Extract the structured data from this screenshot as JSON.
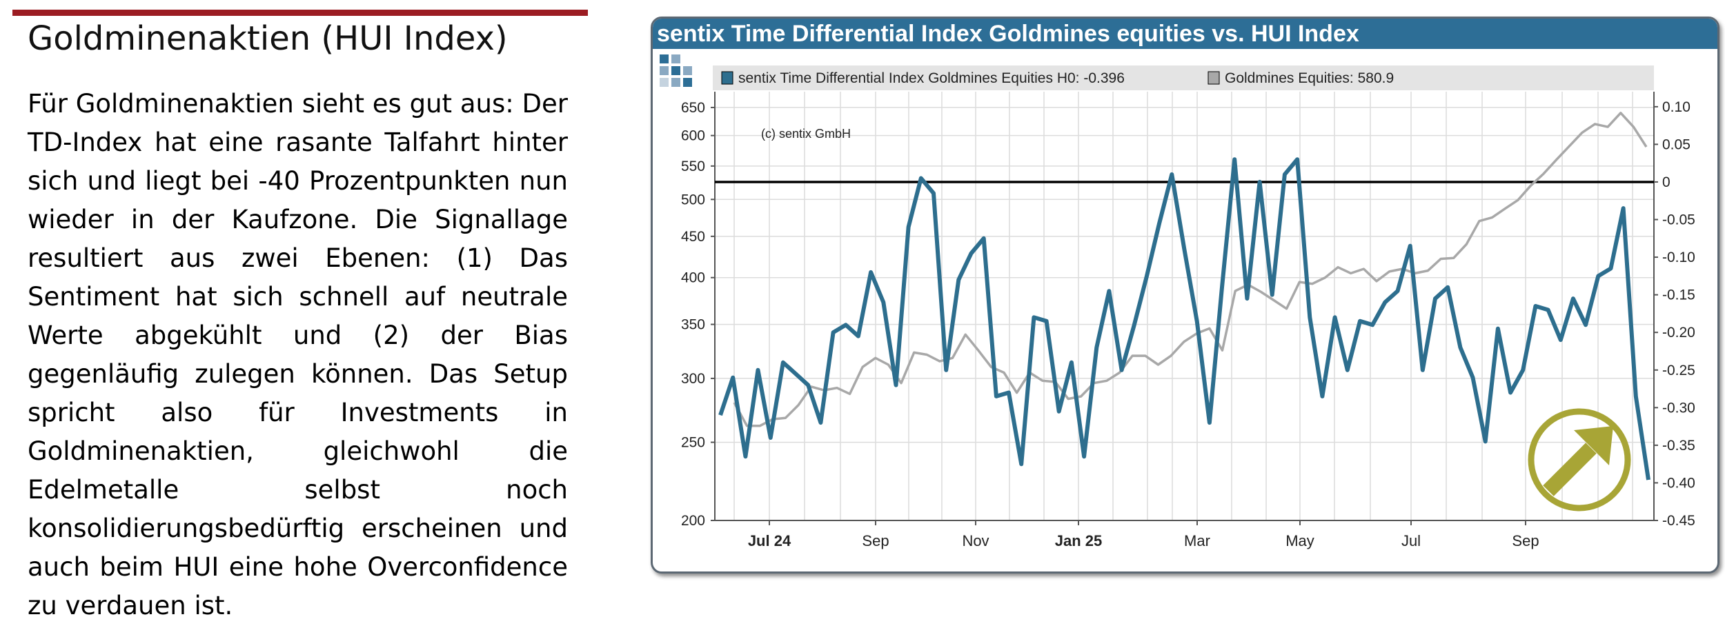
{
  "article": {
    "heading": "Goldminenaktien (HUI Index)",
    "lines": [
      "Für Goldminenaktien sieht es gut aus: Der",
      "TD-Index hat eine rasante Talfahrt hinter",
      "sich und liegt bei -40 Prozentpunkten nun",
      "wieder in der Kaufzone. Die Signallage",
      "resultiert aus zwei Ebenen: (1) Das",
      "Sentiment hat sich schnell auf neutrale",
      "Werte abgekühlt und (2) der Bias",
      "gegenläufig zulegen können. Das Setup",
      "spricht also für Investments in",
      "Goldminenaktien, gleichwohl die",
      "Edelmetalle selbst noch",
      "konsolidierungsbedürftig erscheinen und",
      "auch beim HUI eine hohe Overconfidence",
      "zu verdauen ist."
    ]
  },
  "chart_data": {
    "type": "line",
    "title": "sentix Time Differential Index Goldmines equities vs. HUI Index",
    "copyright": "(c) sentix GmbH",
    "legend": [
      {
        "label": "sentix Time Differential Index Goldmines Equities H0: -0.396",
        "color": "#2d6e8e"
      },
      {
        "label": "Goldmines Equities: 580.9",
        "color": "#a8a8a8"
      }
    ],
    "legend_position": "top",
    "x_ticks": [
      {
        "label": "Jul 24",
        "bold": true
      },
      {
        "label": "Sep",
        "bold": false
      },
      {
        "label": "Nov",
        "bold": false
      },
      {
        "label": "Jan 25",
        "bold": true
      },
      {
        "label": "Mar",
        "bold": false
      },
      {
        "label": "May",
        "bold": false
      },
      {
        "label": "Jul",
        "bold": false
      },
      {
        "label": "Sep",
        "bold": false
      }
    ],
    "left_axis": {
      "scale": "log",
      "ticks": [
        200,
        250,
        300,
        350,
        400,
        450,
        500,
        550,
        600,
        650
      ],
      "range": [
        200,
        680
      ]
    },
    "right_axis": {
      "scale": "linear",
      "ticks": [
        "0.10",
        "0.05",
        "0",
        "-0.05",
        "-0.10",
        "-0.15",
        "-0.20",
        "-0.25",
        "-0.30",
        "-0.35",
        "-0.40",
        "-0.45"
      ],
      "range": [
        -0.45,
        0.12
      ]
    },
    "grid": true,
    "zero_line": 0,
    "series": [
      {
        "name": "sentix Time Differential Index Goldmines Equities H0",
        "axis": "right",
        "color": "#2d6e8e",
        "values": [
          -0.31,
          -0.26,
          -0.365,
          -0.25,
          -0.34,
          -0.24,
          -0.255,
          -0.27,
          -0.32,
          -0.2,
          -0.19,
          -0.205,
          -0.12,
          -0.16,
          -0.27,
          -0.06,
          0.005,
          -0.015,
          -0.25,
          -0.13,
          -0.095,
          -0.075,
          -0.285,
          -0.28,
          -0.375,
          -0.18,
          -0.185,
          -0.305,
          -0.24,
          -0.365,
          -0.22,
          -0.145,
          -0.25,
          -0.19,
          -0.125,
          -0.055,
          0.01,
          -0.09,
          -0.185,
          -0.32,
          -0.14,
          0.03,
          -0.155,
          0.0,
          -0.15,
          0.01,
          0.03,
          -0.18,
          -0.285,
          -0.18,
          -0.25,
          -0.185,
          -0.19,
          -0.16,
          -0.145,
          -0.085,
          -0.25,
          -0.155,
          -0.14,
          -0.22,
          -0.26,
          -0.345,
          -0.195,
          -0.28,
          -0.25,
          -0.165,
          -0.17,
          -0.21,
          -0.155,
          -0.19,
          -0.125,
          -0.115,
          -0.035,
          -0.285,
          -0.396
        ],
        "last_value": -0.396
      },
      {
        "name": "Goldmines Equities",
        "axis": "left",
        "color": "#a8a8a8",
        "values": [
          280,
          262,
          262,
          267,
          268,
          278,
          293,
          290,
          292,
          287,
          310,
          318,
          312,
          296,
          323,
          321,
          315,
          318,
          340,
          325,
          310,
          305,
          288,
          305,
          298,
          297,
          283,
          285,
          296,
          298,
          305,
          320,
          320,
          312,
          320,
          333,
          341,
          346,
          325,
          385,
          392,
          384,
          375,
          366,
          395,
          393,
          400,
          412,
          405,
          410,
          396,
          407,
          410,
          405,
          408,
          422,
          423,
          440,
          470,
          475,
          487,
          499,
          520,
          538,
          560,
          582,
          605,
          620,
          615,
          640,
          615,
          580.9
        ],
        "last_value": 580.9
      }
    ],
    "signal_icon": "arrow-up-right-circle-icon",
    "signal_color": "#a8a536"
  }
}
